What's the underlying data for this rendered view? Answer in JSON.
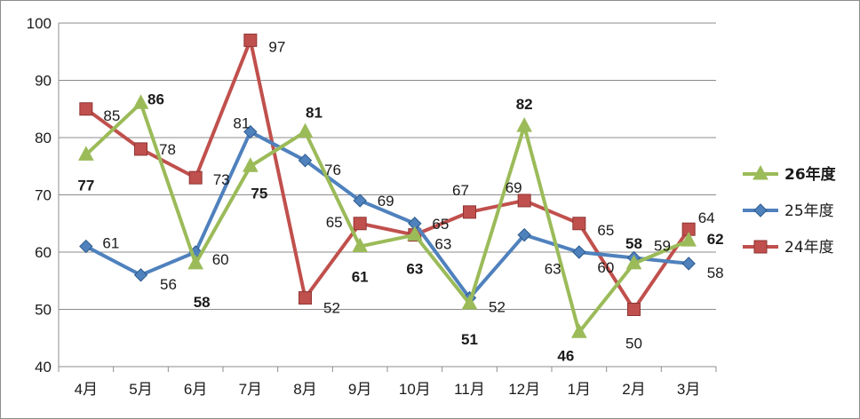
{
  "chart_data": {
    "type": "line",
    "categories": [
      "4月",
      "5月",
      "6月",
      "7月",
      "8月",
      "9月",
      "10月",
      "11月",
      "12月",
      "1月",
      "2月",
      "3月"
    ],
    "ylim": [
      40,
      100
    ],
    "yticks": [
      "40",
      "50",
      "60",
      "70",
      "80",
      "90",
      "100"
    ],
    "grid": true,
    "legend_position": "right",
    "series": [
      {
        "name": "26年度",
        "color": "#9bbb59",
        "marker": "triangle",
        "bold_labels": true,
        "values": [
          77,
          86,
          58,
          75,
          81,
          61,
          63,
          51,
          82,
          46,
          58,
          62
        ]
      },
      {
        "name": "25年度",
        "color": "#4f81bd",
        "marker": "diamond",
        "bold_labels": false,
        "values": [
          61,
          56,
          60,
          81,
          76,
          69,
          65,
          52,
          63,
          60,
          59,
          58
        ]
      },
      {
        "name": "24年度",
        "color": "#c0504d",
        "marker": "square",
        "bold_labels": false,
        "values": [
          85,
          78,
          73,
          97,
          52,
          65,
          63,
          67,
          69,
          65,
          50,
          64
        ]
      }
    ]
  }
}
